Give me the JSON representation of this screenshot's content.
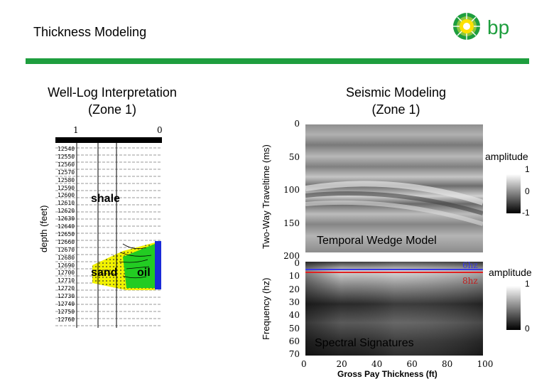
{
  "header": {
    "title": "Thickness Modeling",
    "logo_text": "bp",
    "accent_color": "#1e9e3e"
  },
  "well_log": {
    "title_line1": "Well-Log Interpretation",
    "title_line2": "(Zone 1)",
    "scale_left": "1",
    "scale_right": "0",
    "y_axis_label": "depth (feet)",
    "depths": [
      "12540",
      "12550",
      "12560",
      "12570",
      "12580",
      "12590",
      "12600",
      "12610",
      "12620",
      "12630",
      "12640",
      "12650",
      "12660",
      "12670",
      "12680",
      "12690",
      "12700",
      "12710",
      "12720",
      "12730",
      "12740",
      "12750",
      "12760"
    ],
    "label_shale": "shale",
    "label_sand": "sand",
    "label_oil": "oil"
  },
  "seismic": {
    "title_line1": "Seismic Modeling",
    "title_line2": "(Zone 1)",
    "y_axis_label": "Two-Way Traveltime (ms)",
    "y_ticks": [
      "0",
      "50",
      "100",
      "150",
      "200"
    ],
    "panel_label": "Temporal Wedge Model",
    "colorbar_title": "amplitude",
    "colorbar_ticks": [
      "1",
      "0",
      "-1"
    ]
  },
  "spectral": {
    "y_axis_label": "Frequency (hz)",
    "y_ticks": [
      "0",
      "10",
      "20",
      "30",
      "40",
      "50",
      "60",
      "70"
    ],
    "panel_label": "Spectral Signatures",
    "line_labels": [
      "6hz",
      "8hz"
    ],
    "line_colors": [
      "#3a3adf",
      "#e02020"
    ],
    "colorbar_title": "amplitude",
    "colorbar_ticks": [
      "1",
      "0"
    ],
    "x_ticks": [
      "0",
      "20",
      "40",
      "60",
      "80",
      "100"
    ],
    "x_axis_label": "Gross Pay Thickness (ft)"
  }
}
